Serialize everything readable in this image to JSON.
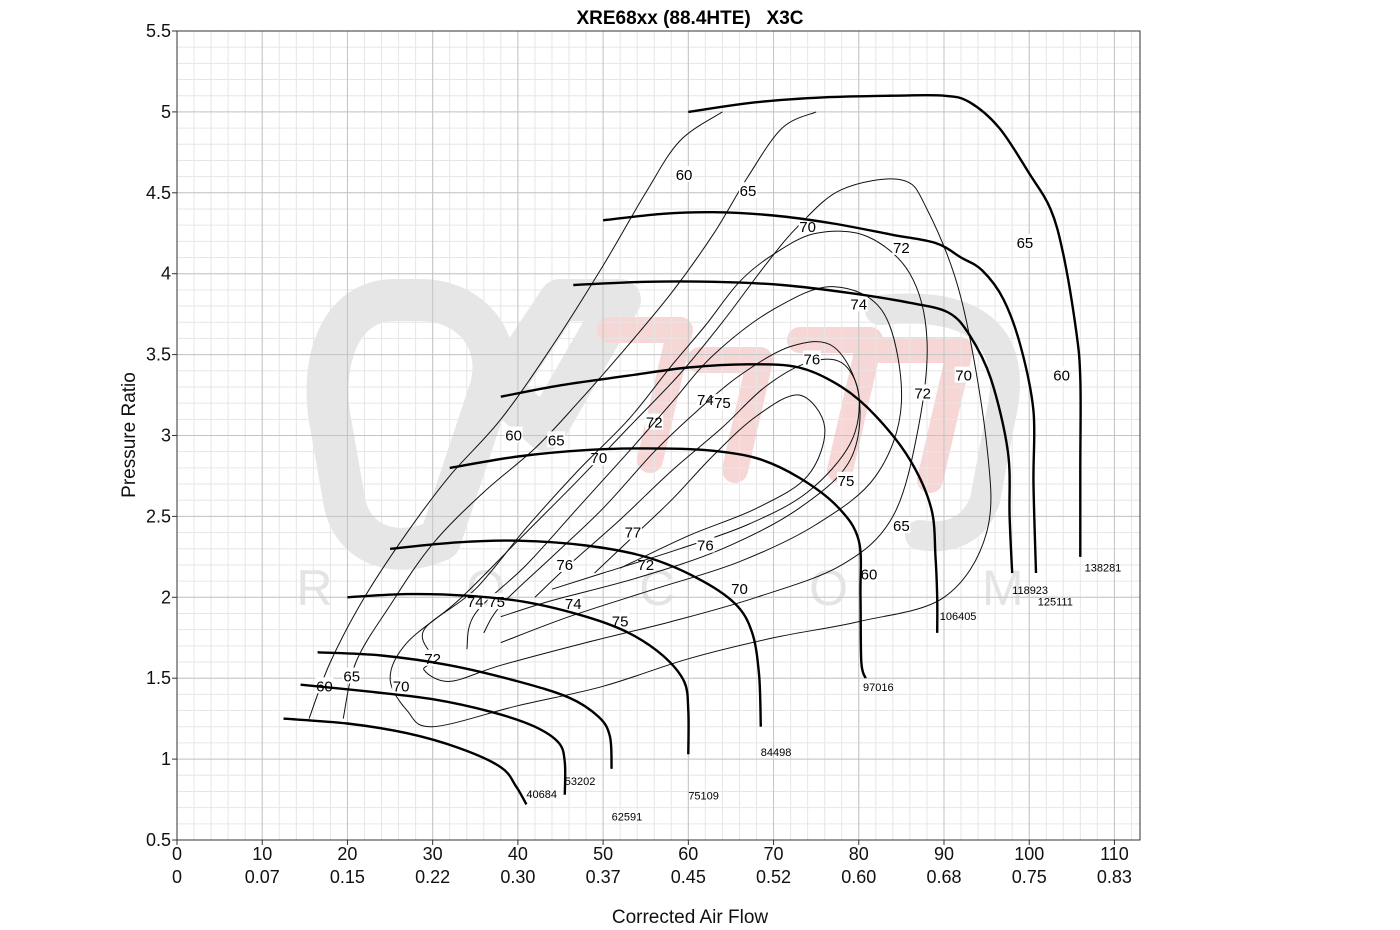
{
  "chart_data": {
    "type": "line",
    "title": "XRE68xx (88.4HTE)   X3C",
    "xlabel": "Corrected Air Flow",
    "ylabel": "Pressure Ratio",
    "xlim": [
      0,
      113
    ],
    "ylim": [
      0.5,
      5.5
    ],
    "grid": true,
    "minor_grid": true,
    "x_ticks": [
      0,
      10,
      20,
      30,
      40,
      50,
      60,
      70,
      80,
      90,
      100,
      110
    ],
    "x_secondary_ticks": [
      "0",
      "0.07",
      "0.15",
      "0.22",
      "0.30",
      "0.37",
      "0.45",
      "0.52",
      "0.60",
      "0.68",
      "0.75",
      "0.83"
    ],
    "y_ticks": [
      "0.5",
      "1",
      "1.5",
      "2",
      "2.5",
      "3",
      "3.5",
      "4",
      "4.5",
      "5",
      "5.5"
    ],
    "watermark_text": "R O C O M",
    "speed_lines": [
      {
        "label": "40684",
        "label_pos": [
          41,
          0.76
        ],
        "points": [
          [
            12.5,
            1.25
          ],
          [
            20,
            1.22
          ],
          [
            27,
            1.16
          ],
          [
            33,
            1.07
          ],
          [
            38,
            0.95
          ],
          [
            39.8,
            0.83
          ],
          [
            41,
            0.72
          ]
        ]
      },
      {
        "label": "53202",
        "label_pos": [
          45.5,
          0.84
        ],
        "points": [
          [
            14.5,
            1.46
          ],
          [
            22,
            1.42
          ],
          [
            30,
            1.37
          ],
          [
            37,
            1.29
          ],
          [
            42,
            1.2
          ],
          [
            44.8,
            1.1
          ],
          [
            45.5,
            0.98
          ],
          [
            45.5,
            0.78
          ]
        ]
      },
      {
        "label": "62591",
        "label_pos": [
          51,
          0.62
        ],
        "points": [
          [
            16.5,
            1.66
          ],
          [
            24,
            1.64
          ],
          [
            32,
            1.58
          ],
          [
            40,
            1.48
          ],
          [
            46,
            1.38
          ],
          [
            49.5,
            1.26
          ],
          [
            50.8,
            1.14
          ],
          [
            51,
            0.94
          ]
        ]
      },
      {
        "label": "75109",
        "label_pos": [
          60,
          0.75
        ],
        "points": [
          [
            20,
            2.0
          ],
          [
            27,
            2.02
          ],
          [
            34,
            2.01
          ],
          [
            41,
            1.97
          ],
          [
            48,
            1.88
          ],
          [
            53,
            1.78
          ],
          [
            57,
            1.64
          ],
          [
            59.5,
            1.48
          ],
          [
            60,
            1.3
          ],
          [
            60,
            1.03
          ]
        ]
      },
      {
        "label": "84498",
        "label_pos": [
          68.5,
          1.02
        ],
        "points": [
          [
            25,
            2.3
          ],
          [
            33,
            2.34
          ],
          [
            40,
            2.35
          ],
          [
            48,
            2.32
          ],
          [
            55,
            2.25
          ],
          [
            61,
            2.12
          ],
          [
            65.5,
            1.96
          ],
          [
            67.5,
            1.78
          ],
          [
            68.3,
            1.52
          ],
          [
            68.5,
            1.2
          ]
        ]
      },
      {
        "label": "97016",
        "label_pos": [
          80.5,
          1.42
        ],
        "points": [
          [
            32,
            2.8
          ],
          [
            40,
            2.87
          ],
          [
            48,
            2.91
          ],
          [
            55,
            2.92
          ],
          [
            62,
            2.91
          ],
          [
            68,
            2.86
          ],
          [
            73,
            2.74
          ],
          [
            77.5,
            2.56
          ],
          [
            80,
            2.35
          ],
          [
            80.2,
            2.0
          ],
          [
            80.3,
            1.6
          ],
          [
            80.8,
            1.5
          ]
        ]
      },
      {
        "label": "106405",
        "label_pos": [
          89.5,
          1.86
        ],
        "points": [
          [
            38,
            3.24
          ],
          [
            45,
            3.31
          ],
          [
            53,
            3.37
          ],
          [
            60,
            3.42
          ],
          [
            67,
            3.44
          ],
          [
            73,
            3.42
          ],
          [
            78,
            3.3
          ],
          [
            82,
            3.12
          ],
          [
            86,
            2.85
          ],
          [
            88.5,
            2.55
          ],
          [
            89,
            2.25
          ],
          [
            89.2,
            2.0
          ],
          [
            89.2,
            1.78
          ]
        ]
      },
      {
        "label": "118923",
        "label_pos": [
          98,
          2.02
        ],
        "points": [
          [
            46.5,
            3.93
          ],
          [
            55,
            3.95
          ],
          [
            63,
            3.95
          ],
          [
            71,
            3.93
          ],
          [
            79,
            3.88
          ],
          [
            86,
            3.82
          ],
          [
            90.5,
            3.76
          ],
          [
            93,
            3.62
          ],
          [
            95.5,
            3.35
          ],
          [
            97.5,
            2.9
          ],
          [
            97.7,
            2.5
          ],
          [
            98,
            2.15
          ]
        ]
      },
      {
        "label": "125111",
        "label_pos": [
          101,
          1.95
        ],
        "points": [
          [
            50,
            4.33
          ],
          [
            57,
            4.37
          ],
          [
            63,
            4.38
          ],
          [
            70,
            4.36
          ],
          [
            77,
            4.31
          ],
          [
            84,
            4.24
          ],
          [
            89,
            4.19
          ],
          [
            92,
            4.1
          ],
          [
            94.5,
            4.02
          ],
          [
            97,
            3.84
          ],
          [
            99,
            3.55
          ],
          [
            100.5,
            3.15
          ],
          [
            100.5,
            2.7
          ],
          [
            100.8,
            2.15
          ]
        ]
      },
      {
        "label": "138281",
        "label_pos": [
          106.5,
          2.16
        ],
        "points": [
          [
            60,
            5.0
          ],
          [
            68,
            5.06
          ],
          [
            76,
            5.09
          ],
          [
            84,
            5.1
          ],
          [
            90,
            5.1
          ],
          [
            93,
            5.06
          ],
          [
            96.5,
            4.9
          ],
          [
            100,
            4.62
          ],
          [
            102.5,
            4.4
          ],
          [
            104,
            4.12
          ],
          [
            105.5,
            3.65
          ],
          [
            106,
            3.35
          ],
          [
            106,
            2.8
          ],
          [
            106,
            2.25
          ]
        ]
      }
    ],
    "efficiency_islands": [
      {
        "label": "60",
        "label_pos": [
          [
            17.3,
            1.45
          ],
          [
            39.5,
            3.0
          ],
          [
            59.5,
            4.61
          ],
          [
            103.8,
            3.37
          ],
          [
            81.2,
            2.14
          ]
        ],
        "points": [
          [
            15.5,
            1.25
          ],
          [
            18,
            1.6
          ],
          [
            22,
            2.0
          ],
          [
            27,
            2.4
          ],
          [
            32,
            2.75
          ],
          [
            38,
            3.1
          ],
          [
            44,
            3.55
          ],
          [
            50,
            4.05
          ],
          [
            55,
            4.5
          ],
          [
            59,
            4.82
          ],
          [
            64,
            5.0
          ]
        ]
      },
      {
        "label": "65",
        "label_pos": [
          [
            20.5,
            1.51
          ],
          [
            44.5,
            2.97
          ],
          [
            67,
            4.51
          ],
          [
            99.5,
            4.19
          ],
          [
            85,
            2.44
          ]
        ],
        "points": [
          [
            19.5,
            1.25
          ],
          [
            21,
            1.6
          ],
          [
            25,
            1.95
          ],
          [
            30,
            2.33
          ],
          [
            36,
            2.65
          ],
          [
            42,
            2.92
          ],
          [
            47,
            3.2
          ],
          [
            52,
            3.5
          ],
          [
            58,
            3.88
          ],
          [
            63,
            4.25
          ],
          [
            67,
            4.6
          ],
          [
            71,
            4.9
          ],
          [
            75,
            5.0
          ]
        ]
      },
      {
        "label": "70",
        "label_pos": [
          [
            26.3,
            1.45
          ],
          [
            49.5,
            2.86
          ],
          [
            74,
            4.29
          ],
          [
            92.3,
            3.37
          ],
          [
            66,
            2.05
          ]
        ],
        "points": [
          [
            27,
            1.3
          ],
          [
            25,
            1.5
          ],
          [
            27,
            1.72
          ],
          [
            33,
            1.98
          ],
          [
            40,
            2.35
          ],
          [
            47,
            2.72
          ],
          [
            53,
            3.05
          ],
          [
            59,
            3.38
          ],
          [
            64,
            3.7
          ],
          [
            69,
            4.05
          ],
          [
            73,
            4.3
          ],
          [
            78,
            4.52
          ],
          [
            85,
            4.58
          ],
          [
            88,
            4.4
          ],
          [
            92,
            3.85
          ],
          [
            95,
            2.95
          ],
          [
            95,
            2.4
          ],
          [
            90,
            2.0
          ],
          [
            80,
            1.85
          ],
          [
            70,
            1.75
          ],
          [
            60,
            1.62
          ],
          [
            50,
            1.45
          ],
          [
            40,
            1.33
          ],
          [
            30,
            1.2
          ]
        ]
      },
      {
        "label": "72",
        "label_pos": [
          [
            30,
            1.62
          ],
          [
            56,
            3.08
          ],
          [
            85,
            4.16
          ],
          [
            87.5,
            3.26
          ],
          [
            55,
            2.2
          ]
        ],
        "points": [
          [
            30,
            1.62
          ],
          [
            29,
            1.8
          ],
          [
            35,
            2.05
          ],
          [
            41,
            2.43
          ],
          [
            47,
            2.78
          ],
          [
            53,
            3.1
          ],
          [
            58,
            3.43
          ],
          [
            62,
            3.68
          ],
          [
            66,
            3.95
          ],
          [
            70,
            4.12
          ],
          [
            75,
            4.25
          ],
          [
            81,
            4.23
          ],
          [
            86,
            4.0
          ],
          [
            88,
            3.6
          ],
          [
            87,
            3.05
          ],
          [
            84,
            2.5
          ],
          [
            78,
            2.2
          ],
          [
            68,
            2.0
          ],
          [
            58,
            1.85
          ],
          [
            48,
            1.72
          ],
          [
            38,
            1.58
          ],
          [
            32,
            1.48
          ],
          [
            29,
            1.55
          ]
        ]
      },
      {
        "label": "74",
        "label_pos": [
          [
            35,
            1.97
          ],
          [
            62,
            3.22
          ],
          [
            80,
            3.81
          ],
          [
            46.5,
            1.96
          ]
        ],
        "points": [
          [
            34,
            1.68
          ],
          [
            35,
            1.9
          ],
          [
            41,
            2.2
          ],
          [
            47,
            2.55
          ],
          [
            53,
            2.9
          ],
          [
            58,
            3.2
          ],
          [
            63,
            3.5
          ],
          [
            70,
            3.78
          ],
          [
            77,
            3.92
          ],
          [
            83,
            3.75
          ],
          [
            85,
            3.2
          ],
          [
            82,
            2.75
          ],
          [
            75,
            2.45
          ],
          [
            66,
            2.22
          ],
          [
            56,
            2.05
          ],
          [
            46,
            1.88
          ],
          [
            38,
            1.72
          ]
        ]
      },
      {
        "label": "75",
        "label_pos": [
          [
            37.5,
            1.97
          ],
          [
            64,
            3.2
          ],
          [
            78.5,
            2.72
          ],
          [
            52,
            1.85
          ]
        ],
        "points": [
          [
            36,
            1.78
          ],
          [
            38,
            1.95
          ],
          [
            44,
            2.25
          ],
          [
            50,
            2.55
          ],
          [
            56,
            2.9
          ],
          [
            61,
            3.15
          ],
          [
            66,
            3.37
          ],
          [
            72,
            3.55
          ],
          [
            77,
            3.55
          ],
          [
            80,
            3.25
          ],
          [
            79,
            2.85
          ],
          [
            73,
            2.55
          ],
          [
            64,
            2.3
          ],
          [
            54,
            2.12
          ],
          [
            44,
            1.98
          ],
          [
            38,
            1.88
          ]
        ]
      },
      {
        "label": "76",
        "label_pos": [
          [
            45.5,
            2.2
          ],
          [
            74.5,
            3.47
          ],
          [
            62,
            2.32
          ]
        ],
        "points": [
          [
            42,
            2.0
          ],
          [
            46,
            2.2
          ],
          [
            52,
            2.48
          ],
          [
            58,
            2.78
          ],
          [
            64,
            3.05
          ],
          [
            69,
            3.3
          ],
          [
            74,
            3.45
          ],
          [
            78,
            3.45
          ],
          [
            80,
            3.25
          ],
          [
            79,
            2.95
          ],
          [
            74,
            2.65
          ],
          [
            67,
            2.45
          ],
          [
            59,
            2.3
          ],
          [
            50,
            2.15
          ],
          [
            44,
            2.05
          ]
        ]
      },
      {
        "label": "77",
        "label_pos": [
          [
            53.5,
            2.4
          ]
        ],
        "points": [
          [
            49,
            2.15
          ],
          [
            53,
            2.35
          ],
          [
            58,
            2.6
          ],
          [
            63,
            2.88
          ],
          [
            68,
            3.12
          ],
          [
            73,
            3.25
          ],
          [
            76,
            3.05
          ],
          [
            74,
            2.75
          ],
          [
            68,
            2.55
          ],
          [
            60,
            2.38
          ],
          [
            52,
            2.18
          ]
        ]
      }
    ]
  }
}
